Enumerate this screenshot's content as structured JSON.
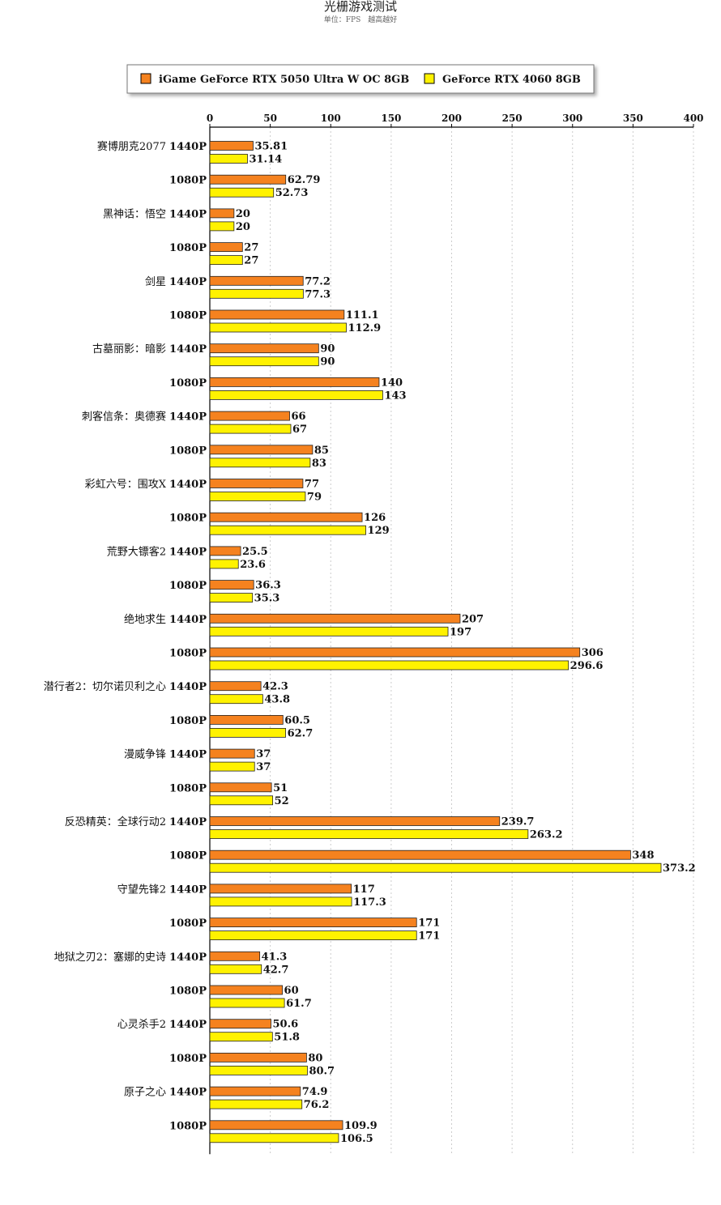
{
  "chart_data": {
    "type": "bar",
    "orientation": "horizontal",
    "title": "光栅游戏测试",
    "subtitle": "单位：FPS　越高越好",
    "legend_position": "top",
    "xlim": [
      0,
      400
    ],
    "x_ticks": [
      0,
      50,
      100,
      150,
      200,
      250,
      300,
      350,
      400
    ],
    "grid": "vertical-dotted",
    "series": [
      {
        "name": "iGame GeForce RTX 5050 Ultra W OC 8GB",
        "color": "#f5821f"
      },
      {
        "name": "GeForce RTX 4060 8GB",
        "color": "#fff200"
      }
    ],
    "games": [
      {
        "name": "赛博朋克2077",
        "rows": [
          {
            "res": "1440P",
            "values": [
              35.81,
              31.14
            ],
            "labels": [
              "35.81",
              "31.14"
            ]
          },
          {
            "res": "1080P",
            "values": [
              62.79,
              52.73
            ],
            "labels": [
              "62.79",
              "52.73"
            ]
          }
        ]
      },
      {
        "name": "黑神话：悟空",
        "rows": [
          {
            "res": "1440P",
            "values": [
              20,
              20
            ],
            "labels": [
              "20",
              "20"
            ]
          },
          {
            "res": "1080P",
            "values": [
              27,
              27
            ],
            "labels": [
              "27",
              "27"
            ]
          }
        ]
      },
      {
        "name": "剑星",
        "rows": [
          {
            "res": "1440P",
            "values": [
              77.2,
              77.3
            ],
            "labels": [
              "77.2",
              "77.3"
            ]
          },
          {
            "res": "1080P",
            "values": [
              111.1,
              112.9
            ],
            "labels": [
              "111.1",
              "112.9"
            ]
          }
        ]
      },
      {
        "name": "古墓丽影：暗影",
        "rows": [
          {
            "res": "1440P",
            "values": [
              90,
              90
            ],
            "labels": [
              "90",
              "90"
            ]
          },
          {
            "res": "1080P",
            "values": [
              140,
              143
            ],
            "labels": [
              "140",
              "143"
            ]
          }
        ]
      },
      {
        "name": "刺客信条：奥德赛",
        "rows": [
          {
            "res": "1440P",
            "values": [
              66,
              67
            ],
            "labels": [
              "66",
              "67"
            ]
          },
          {
            "res": "1080P",
            "values": [
              85,
              83
            ],
            "labels": [
              "85",
              "83"
            ]
          }
        ]
      },
      {
        "name": "彩虹六号：围攻X",
        "rows": [
          {
            "res": "1440P",
            "values": [
              77,
              79
            ],
            "labels": [
              "77",
              "79"
            ]
          },
          {
            "res": "1080P",
            "values": [
              126,
              129
            ],
            "labels": [
              "126",
              "129"
            ]
          }
        ]
      },
      {
        "name": "荒野大镖客2",
        "rows": [
          {
            "res": "1440P",
            "values": [
              25.5,
              23.6
            ],
            "labels": [
              "25.5",
              "23.6"
            ]
          },
          {
            "res": "1080P",
            "values": [
              36.3,
              35.3
            ],
            "labels": [
              "36.3",
              "35.3"
            ]
          }
        ]
      },
      {
        "name": "绝地求生",
        "rows": [
          {
            "res": "1440P",
            "values": [
              207,
              197
            ],
            "labels": [
              "207",
              "197"
            ]
          },
          {
            "res": "1080P",
            "values": [
              306,
              296.6
            ],
            "labels": [
              "306",
              "296.6"
            ]
          }
        ]
      },
      {
        "name": "潜行者2：切尔诺贝利之心",
        "rows": [
          {
            "res": "1440P",
            "values": [
              42.3,
              43.8
            ],
            "labels": [
              "42.3",
              "43.8"
            ]
          },
          {
            "res": "1080P",
            "values": [
              60.5,
              62.7
            ],
            "labels": [
              "60.5",
              "62.7"
            ]
          }
        ]
      },
      {
        "name": "漫威争锋",
        "rows": [
          {
            "res": "1440P",
            "values": [
              37,
              37
            ],
            "labels": [
              "37",
              "37"
            ]
          },
          {
            "res": "1080P",
            "values": [
              51,
              52
            ],
            "labels": [
              "51",
              "52"
            ]
          }
        ]
      },
      {
        "name": "反恐精英：全球行动2",
        "rows": [
          {
            "res": "1440P",
            "values": [
              239.7,
              263.2
            ],
            "labels": [
              "239.7",
              "263.2"
            ]
          },
          {
            "res": "1080P",
            "values": [
              348,
              373.2
            ],
            "labels": [
              "348",
              "373.2"
            ]
          }
        ]
      },
      {
        "name": "守望先锋2",
        "rows": [
          {
            "res": "1440P",
            "values": [
              117,
              117.3
            ],
            "labels": [
              "117",
              "117.3"
            ]
          },
          {
            "res": "1080P",
            "values": [
              171,
              171
            ],
            "labels": [
              "171",
              "171"
            ]
          }
        ]
      },
      {
        "name": "地狱之刃2：塞娜的史诗",
        "rows": [
          {
            "res": "1440P",
            "values": [
              41.3,
              42.7
            ],
            "labels": [
              "41.3",
              "42.7"
            ]
          },
          {
            "res": "1080P",
            "values": [
              60,
              61.7
            ],
            "labels": [
              "60",
              "61.7"
            ]
          }
        ]
      },
      {
        "name": "心灵杀手2",
        "rows": [
          {
            "res": "1440P",
            "values": [
              50.6,
              51.8
            ],
            "labels": [
              "50.6",
              "51.8"
            ]
          },
          {
            "res": "1080P",
            "values": [
              80,
              80.7
            ],
            "labels": [
              "80",
              "80.7"
            ]
          }
        ]
      },
      {
        "name": "原子之心",
        "rows": [
          {
            "res": "1440P",
            "values": [
              74.9,
              76.2
            ],
            "labels": [
              "74.9",
              "76.2"
            ]
          },
          {
            "res": "1080P",
            "values": [
              109.9,
              106.5
            ],
            "labels": [
              "109.9",
              "106.5"
            ]
          }
        ]
      }
    ]
  }
}
